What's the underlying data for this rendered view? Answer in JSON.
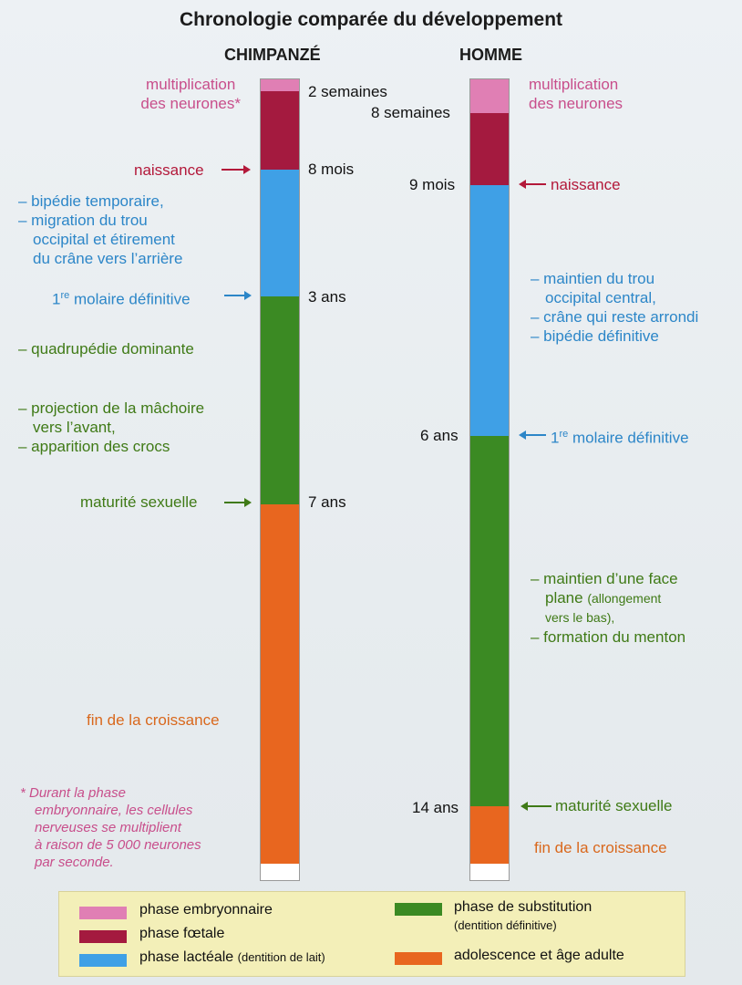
{
  "title": "Chronologie comparée du développement",
  "chimp": {
    "header": "CHIMPANZÉ",
    "ages": [
      "2 semaines",
      "8 mois",
      "3 ans",
      "7 ans"
    ],
    "multiplication": [
      "multiplication",
      "des neurones*"
    ],
    "naissance": "naissance",
    "bipedie": [
      "– bipédie temporaire,",
      "– migration du trou",
      "occipital et étirement",
      "du crâne vers l’arrière"
    ],
    "molaire_prefix": "1",
    "molaire_sup": "re",
    "molaire_rest": " molaire définitive",
    "quadrupedie": "– quadrupédie dominante",
    "projection": [
      "– projection de la mâchoire",
      "vers l’avant,",
      "– apparition des crocs"
    ],
    "maturite": "maturité sexuelle",
    "fin": "fin de la croissance"
  },
  "human": {
    "header": "HOMME",
    "ages": [
      "8 semaines",
      "9 mois",
      "6 ans",
      "14 ans"
    ],
    "multiplication": [
      "multiplication",
      "des neurones"
    ],
    "naissance": "naissance",
    "maintien_trou": [
      "– maintien du trou",
      "occipital central,",
      "– crâne qui reste arrondi",
      "– bipédie définitive"
    ],
    "molaire_prefix": "1",
    "molaire_sup": "re",
    "molaire_rest": " molaire définitive",
    "maintien_face": [
      "– maintien d’une face",
      "plane",
      "(allongement",
      "vers le bas),",
      "– formation du menton"
    ],
    "maturite": "maturité sexuelle",
    "fin": "fin de la croissance"
  },
  "note": [
    "* Durant la phase",
    "embryonnaire, les cellules",
    "nerveuses se multiplient",
    "à raison de 5 000 neurones",
    "par seconde."
  ],
  "legend": {
    "embryo": "phase embryonnaire",
    "foetal": "phase fœtale",
    "lactee": "phase lactéale",
    "lactee_note": "(dentition de lait)",
    "substitution": "phase de substitution",
    "substitution_note": "(dentition définitive)",
    "adolescence": "adolescence et âge adulte"
  },
  "colors": {
    "embryo": "#e07fb4",
    "foetal": "#a41a3f",
    "lactee": "#3fa0e6",
    "substitution": "#3b8a23",
    "adolescence": "#e8661f"
  }
}
